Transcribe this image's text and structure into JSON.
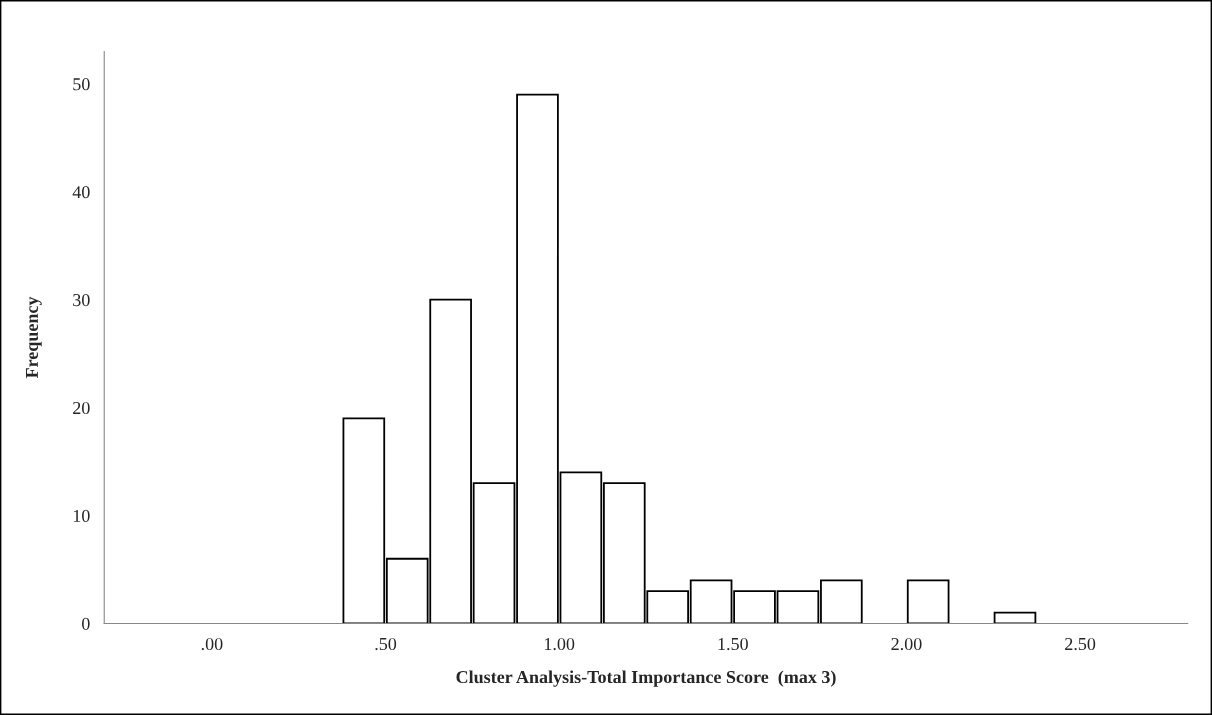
{
  "chart_data": {
    "type": "histogram",
    "xlabel": "Cluster Analysis-Total Importance Score  (max 3)",
    "ylabel": "Frequency",
    "bins": [
      0.375,
      0.5,
      0.625,
      0.75,
      0.875,
      1.0,
      1.125,
      1.25,
      1.375,
      1.5,
      1.625,
      1.75,
      1.875,
      2.0,
      2.125,
      2.25,
      2.375
    ],
    "values": [
      19,
      6,
      30,
      13,
      49,
      14,
      13,
      3,
      4,
      3,
      3,
      4,
      0,
      4,
      0,
      1
    ],
    "color": "#ffffff",
    "xlim": [
      -0.31,
      2.81
    ],
    "xticks": [
      {
        "value": 0,
        "label": ".00"
      },
      {
        "value": 0.5,
        "label": ".50"
      },
      {
        "value": 1.0,
        "label": "1.00"
      },
      {
        "value": 1.5,
        "label": "1.50"
      },
      {
        "value": 2.0,
        "label": "2.00"
      },
      {
        "value": 2.5,
        "label": "2.50"
      }
    ],
    "ylim": [
      0,
      53
    ],
    "yticks": [
      0,
      10,
      20,
      30,
      40,
      50
    ],
    "grid": false,
    "legend": false
  }
}
